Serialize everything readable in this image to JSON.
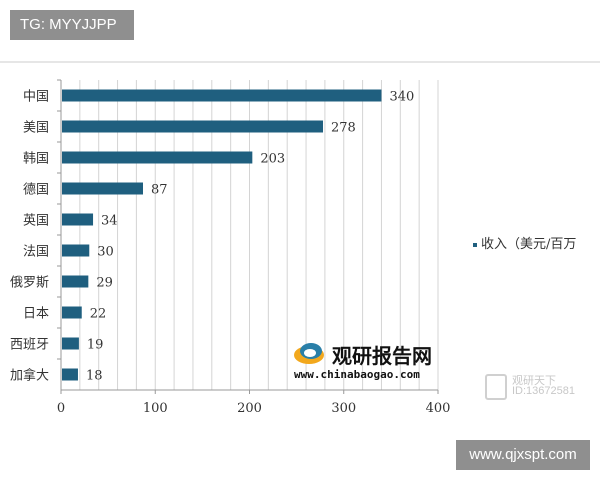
{
  "header": {
    "tag": "TG: MYYJJPP"
  },
  "footer": {
    "site": "www.qjxspt.com"
  },
  "watermark": {
    "brand": "观研报告网",
    "url": "www.chinabaogao.com",
    "corner_line1": "观研天下",
    "corner_line2": "ID:13672581"
  },
  "chart_data": {
    "type": "bar",
    "orientation": "horizontal",
    "categories": [
      "中国",
      "美国",
      "韩国",
      "德国",
      "英国",
      "法国",
      "俄罗斯",
      "日本",
      "西班牙",
      "加拿大"
    ],
    "series": [
      {
        "name": "收入（美元/百万",
        "values": [
          340,
          278,
          203,
          87,
          34,
          30,
          29,
          22,
          19,
          18
        ]
      }
    ],
    "xlim": [
      0,
      400
    ],
    "xticks": [
      "0",
      "100",
      "200",
      "300",
      "400"
    ],
    "grid": true,
    "legend": "right",
    "bar_color": "#1f5f7f",
    "title": "",
    "xlabel": "",
    "ylabel": ""
  }
}
